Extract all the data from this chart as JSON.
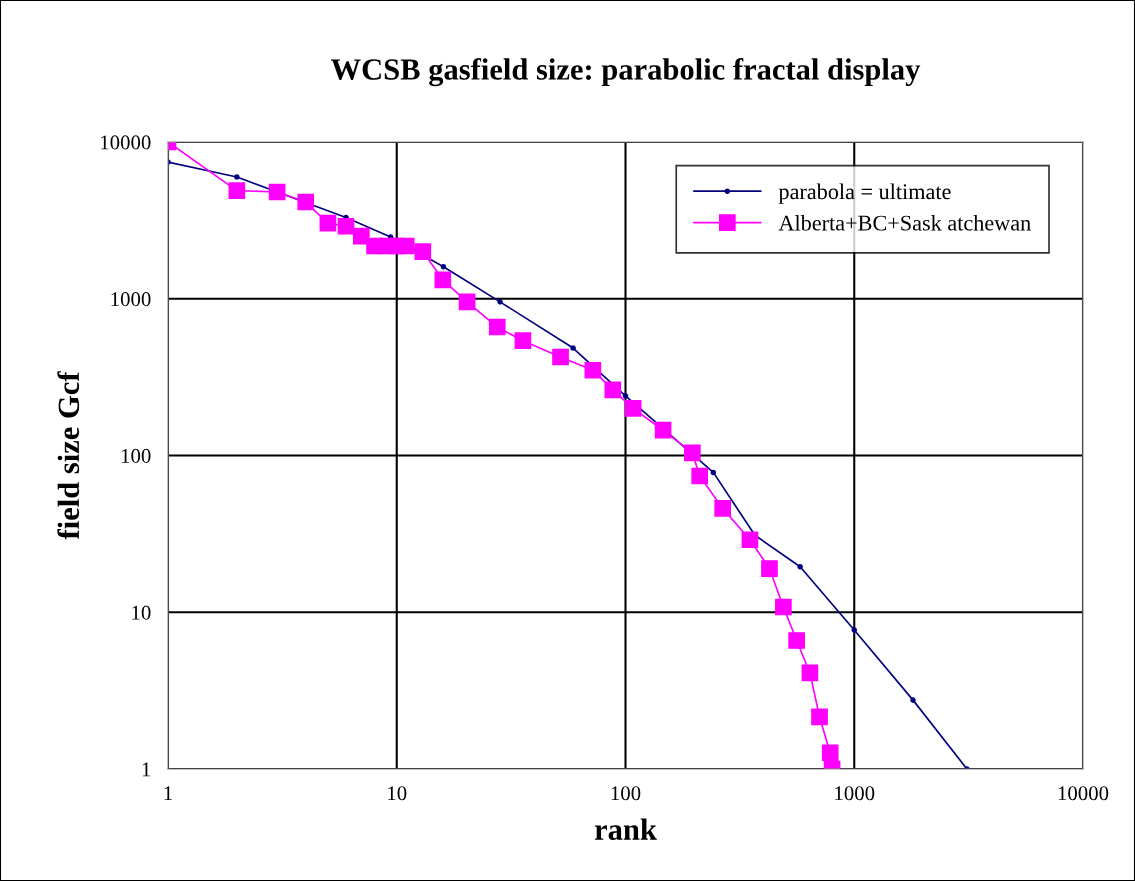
{
  "chart_data": {
    "type": "line",
    "title": "WCSB gasfield size: parabolic fractal display",
    "xlabel": "rank",
    "ylabel": "field size Gcf",
    "log": "xy",
    "xlim": [
      1,
      10000
    ],
    "ylim": [
      1,
      10000
    ],
    "xticks": [
      1,
      10,
      100,
      1000,
      10000
    ],
    "yticks": [
      1,
      10,
      100,
      1000,
      10000
    ],
    "grid": true,
    "legend": "top right",
    "series": [
      {
        "name": "parabola = ultimate",
        "color": "#000080",
        "marker": "circle",
        "x": [
          1,
          2,
          6,
          9.4,
          16,
          28.3,
          59,
          100,
          242,
          368,
          580,
          1000,
          1807,
          3110
        ],
        "values": [
          7450,
          5980,
          3300,
          2480,
          1600,
          955,
          485,
          240,
          78,
          31,
          19.5,
          7.7,
          2.75,
          1
        ]
      },
      {
        "name": "Alberta+BC+Sask atchewan",
        "color": "#ff00ff",
        "marker": "square",
        "x": [
          1,
          2,
          3,
          4,
          5,
          6,
          7,
          8,
          9,
          10,
          11,
          13,
          15.9,
          20.3,
          27.5,
          35.6,
          52,
          72,
          88,
          108,
          146,
          196,
          211,
          266,
          350,
          426,
          490,
          560,
          640,
          705,
          785,
          800
        ],
        "values": [
          10000,
          4900,
          4800,
          4140,
          3040,
          2900,
          2510,
          2170,
          2170,
          2170,
          2170,
          2000,
          1320,
          955,
          660,
          540,
          425,
          350,
          262,
          200,
          145,
          104,
          74,
          46,
          29,
          19,
          10.8,
          6.6,
          4.1,
          2.15,
          1.27,
          1
        ]
      }
    ]
  }
}
